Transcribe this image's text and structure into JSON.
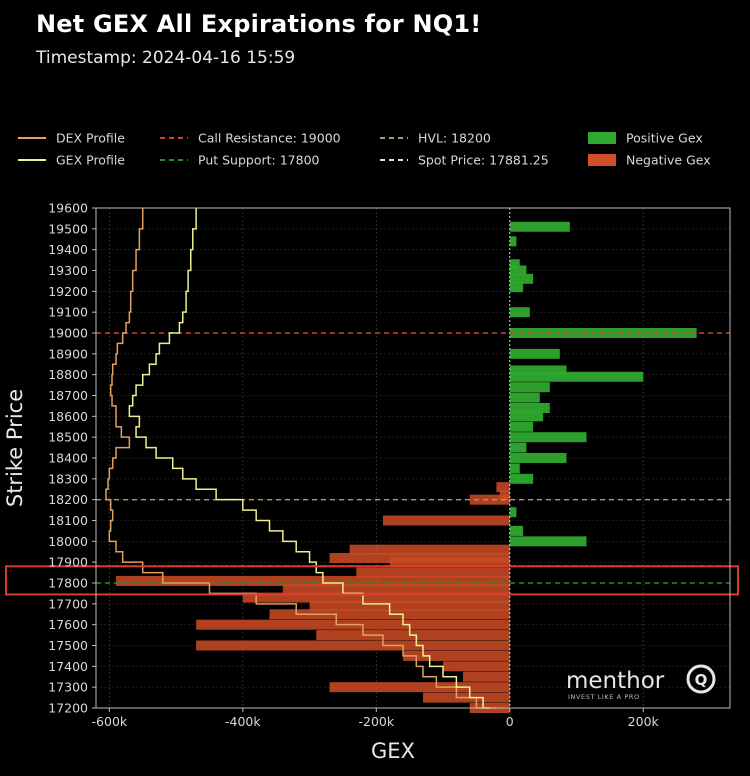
{
  "header": {
    "title": "Net GEX All Expirations for NQ1!",
    "subtitle": "Timestamp: 2024-04-16 15:59"
  },
  "legend": [
    {
      "label": "DEX Profile",
      "kind": "line",
      "color": "#e0a060"
    },
    {
      "label": "GEX Profile",
      "kind": "line",
      "color": "#f0f08c"
    },
    {
      "label": "Call Resistance: 19000",
      "kind": "dash",
      "color": "#d0402c"
    },
    {
      "label": "Put Support: 17800",
      "kind": "dash",
      "color": "#2e8b2e"
    },
    {
      "label": "HVL: 18200",
      "kind": "dash",
      "color": "#a0a070"
    },
    {
      "label": "Spot Price: 17881.25",
      "kind": "dash",
      "color": "#e0e0e0"
    },
    {
      "label": "Positive Gex",
      "kind": "patch",
      "color": "#2ea82e"
    },
    {
      "label": "Negative Gex",
      "kind": "patch",
      "color": "#d0502a"
    }
  ],
  "watermark": {
    "brand": "menthor",
    "mark": "Q",
    "tagline": "INVEST LIKE A PRO"
  },
  "chart_data": {
    "type": "bar",
    "orientation": "horizontal",
    "xlabel": "GEX",
    "ylabel": "Strike Price",
    "xlim": [
      -620000,
      330000
    ],
    "ylim": [
      17200,
      19600
    ],
    "x_ticks": [
      -600000,
      -400000,
      -200000,
      0,
      200000
    ],
    "x_tick_labels": [
      "-600k",
      "-400k",
      "-200k",
      "0",
      "200k"
    ],
    "y_ticks": [
      17200,
      17300,
      17400,
      17500,
      17600,
      17700,
      17800,
      17900,
      18000,
      18100,
      18200,
      18300,
      18400,
      18500,
      18600,
      18700,
      18800,
      18900,
      19000,
      19100,
      19200,
      19300,
      19400,
      19500,
      19600
    ],
    "y_tick_labels": [
      "17200",
      "17300",
      "17400",
      "17500",
      "17600",
      "17700",
      "17800",
      "17900",
      "18000",
      "18100",
      "18200",
      "18300",
      "18400",
      "18500",
      "18600",
      "18700",
      "18800",
      "18900",
      "19000",
      "19100",
      "19200",
      "19300",
      "19400",
      "19500",
      "19600"
    ],
    "grid": true,
    "legend_position": "top",
    "bars": [
      {
        "strike": 19510,
        "gex": 90000
      },
      {
        "strike": 19440,
        "gex": 10000
      },
      {
        "strike": 19330,
        "gex": 15000
      },
      {
        "strike": 19300,
        "gex": 25000
      },
      {
        "strike": 19260,
        "gex": 35000
      },
      {
        "strike": 19220,
        "gex": 20000
      },
      {
        "strike": 19100,
        "gex": 30000
      },
      {
        "strike": 19000,
        "gex": 280000
      },
      {
        "strike": 18900,
        "gex": 75000
      },
      {
        "strike": 18820,
        "gex": 85000
      },
      {
        "strike": 18790,
        "gex": 200000
      },
      {
        "strike": 18740,
        "gex": 60000
      },
      {
        "strike": 18690,
        "gex": 45000
      },
      {
        "strike": 18640,
        "gex": 60000
      },
      {
        "strike": 18600,
        "gex": 50000
      },
      {
        "strike": 18550,
        "gex": 35000
      },
      {
        "strike": 18500,
        "gex": 115000
      },
      {
        "strike": 18450,
        "gex": 25000
      },
      {
        "strike": 18400,
        "gex": 85000
      },
      {
        "strike": 18350,
        "gex": 15000
      },
      {
        "strike": 18300,
        "gex": 35000
      },
      {
        "strike": 18260,
        "gex": -20000
      },
      {
        "strike": 18220,
        "gex": -15000
      },
      {
        "strike": 18200,
        "gex": -60000
      },
      {
        "strike": 18140,
        "gex": 10000
      },
      {
        "strike": 18100,
        "gex": -190000
      },
      {
        "strike": 18050,
        "gex": 20000
      },
      {
        "strike": 18000,
        "gex": 115000
      },
      {
        "strike": 17960,
        "gex": -240000
      },
      {
        "strike": 17920,
        "gex": -270000
      },
      {
        "strike": 17900,
        "gex": -180000
      },
      {
        "strike": 17850,
        "gex": -230000
      },
      {
        "strike": 17810,
        "gex": -590000
      },
      {
        "strike": 17770,
        "gex": -340000
      },
      {
        "strike": 17730,
        "gex": -400000
      },
      {
        "strike": 17690,
        "gex": -300000
      },
      {
        "strike": 17650,
        "gex": -360000
      },
      {
        "strike": 17600,
        "gex": -470000
      },
      {
        "strike": 17550,
        "gex": -290000
      },
      {
        "strike": 17500,
        "gex": -470000
      },
      {
        "strike": 17450,
        "gex": -160000
      },
      {
        "strike": 17400,
        "gex": -100000
      },
      {
        "strike": 17350,
        "gex": -70000
      },
      {
        "strike": 17300,
        "gex": -270000
      },
      {
        "strike": 17250,
        "gex": -130000
      },
      {
        "strike": 17200,
        "gex": -60000
      }
    ],
    "series": [
      {
        "name": "DEX Profile",
        "points": [
          [
            -550000,
            19600
          ],
          [
            -555000,
            19500
          ],
          [
            -560000,
            19400
          ],
          [
            -565000,
            19300
          ],
          [
            -568000,
            19200
          ],
          [
            -570000,
            19100
          ],
          [
            -575000,
            19050
          ],
          [
            -580000,
            19000
          ],
          [
            -588000,
            18950
          ],
          [
            -590000,
            18900
          ],
          [
            -595000,
            18850
          ],
          [
            -596000,
            18800
          ],
          [
            -598000,
            18750
          ],
          [
            -596000,
            18700
          ],
          [
            -590000,
            18650
          ],
          [
            -590000,
            18600
          ],
          [
            -582000,
            18550
          ],
          [
            -570000,
            18500
          ],
          [
            -590000,
            18450
          ],
          [
            -595000,
            18400
          ],
          [
            -600000,
            18350
          ],
          [
            -602000,
            18300
          ],
          [
            -605000,
            18250
          ],
          [
            -598000,
            18200
          ],
          [
            -595000,
            18150
          ],
          [
            -598000,
            18100
          ],
          [
            -600000,
            18050
          ],
          [
            -590000,
            18000
          ],
          [
            -580000,
            17950
          ],
          [
            -550000,
            17900
          ],
          [
            -520000,
            17850
          ],
          [
            -450000,
            17800
          ],
          [
            -380000,
            17750
          ],
          [
            -320000,
            17700
          ],
          [
            -260000,
            17650
          ],
          [
            -220000,
            17600
          ],
          [
            -190000,
            17550
          ],
          [
            -160000,
            17500
          ],
          [
            -140000,
            17450
          ],
          [
            -130000,
            17400
          ],
          [
            -110000,
            17350
          ],
          [
            -80000,
            17300
          ],
          [
            -50000,
            17250
          ],
          [
            -20000,
            17200
          ]
        ]
      },
      {
        "name": "GEX Profile",
        "points": [
          [
            -470000,
            19600
          ],
          [
            -475000,
            19500
          ],
          [
            -478000,
            19400
          ],
          [
            -482000,
            19300
          ],
          [
            -485000,
            19200
          ],
          [
            -490000,
            19100
          ],
          [
            -495000,
            19050
          ],
          [
            -510000,
            19000
          ],
          [
            -525000,
            18950
          ],
          [
            -530000,
            18900
          ],
          [
            -540000,
            18850
          ],
          [
            -550000,
            18800
          ],
          [
            -560000,
            18750
          ],
          [
            -565000,
            18700
          ],
          [
            -570000,
            18650
          ],
          [
            -555000,
            18600
          ],
          [
            -560000,
            18550
          ],
          [
            -545000,
            18500
          ],
          [
            -530000,
            18450
          ],
          [
            -505000,
            18400
          ],
          [
            -490000,
            18350
          ],
          [
            -470000,
            18300
          ],
          [
            -440000,
            18250
          ],
          [
            -400000,
            18200
          ],
          [
            -380000,
            18150
          ],
          [
            -360000,
            18100
          ],
          [
            -340000,
            18050
          ],
          [
            -320000,
            18000
          ],
          [
            -300000,
            17950
          ],
          [
            -290000,
            17900
          ],
          [
            -280000,
            17850
          ],
          [
            -250000,
            17800
          ],
          [
            -220000,
            17750
          ],
          [
            -180000,
            17700
          ],
          [
            -160000,
            17650
          ],
          [
            -150000,
            17600
          ],
          [
            -140000,
            17550
          ],
          [
            -130000,
            17500
          ],
          [
            -120000,
            17450
          ],
          [
            -100000,
            17400
          ],
          [
            -80000,
            17350
          ],
          [
            -60000,
            17300
          ],
          [
            -40000,
            17250
          ],
          [
            -30000,
            17200
          ]
        ]
      }
    ],
    "reference_lines": [
      {
        "name": "Call Resistance",
        "y": 19000,
        "color": "#d0402c"
      },
      {
        "name": "Put Support",
        "y": 17800,
        "color": "#2e8b2e"
      },
      {
        "name": "HVL",
        "y": 18200,
        "color": "#a0a070"
      },
      {
        "name": "Spot Price",
        "y": 17881.25,
        "color": "#e0e0e0"
      }
    ],
    "highlight": {
      "y_from": 17745,
      "y_to": 17880,
      "color": "#e03a2e"
    }
  }
}
